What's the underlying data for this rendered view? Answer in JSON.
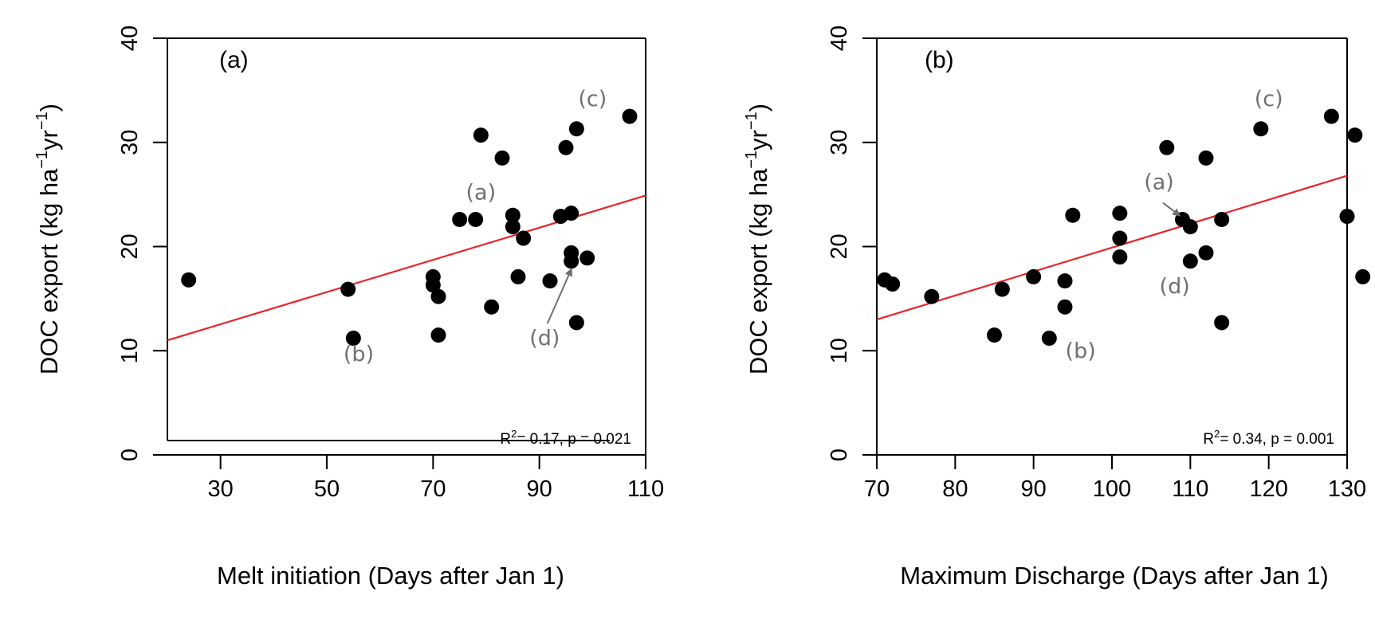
{
  "chart_data": [
    {
      "type": "scatter",
      "panel_label": "(a)",
      "xlabel": "Melt initiation (Days after Jan 1)",
      "ylabel": "DOC export (kg ha",
      "ylabel_sup1": "−1",
      "ylabel_mid": "yr",
      "ylabel_sup2": "−1",
      "ylabel_end": ")",
      "xlim": [
        20,
        110
      ],
      "ylim": [
        0,
        40
      ],
      "xticks": [
        30,
        50,
        70,
        90,
        110
      ],
      "yticks": [
        0,
        10,
        20,
        30,
        40
      ],
      "points": [
        {
          "x": 24,
          "y": 16.8
        },
        {
          "x": 54,
          "y": 15.9
        },
        {
          "x": 55,
          "y": 11.2
        },
        {
          "x": 70,
          "y": 17.1
        },
        {
          "x": 70,
          "y": 16.3
        },
        {
          "x": 71,
          "y": 15.2
        },
        {
          "x": 71,
          "y": 11.5
        },
        {
          "x": 75,
          "y": 22.6
        },
        {
          "x": 78,
          "y": 22.6
        },
        {
          "x": 79,
          "y": 30.7
        },
        {
          "x": 81,
          "y": 14.2
        },
        {
          "x": 83,
          "y": 28.5
        },
        {
          "x": 85,
          "y": 23.0
        },
        {
          "x": 85,
          "y": 21.9
        },
        {
          "x": 86,
          "y": 17.1
        },
        {
          "x": 87,
          "y": 20.8
        },
        {
          "x": 92,
          "y": 16.7
        },
        {
          "x": 94,
          "y": 22.9
        },
        {
          "x": 95,
          "y": 29.5
        },
        {
          "x": 96,
          "y": 23.2
        },
        {
          "x": 96,
          "y": 19.4
        },
        {
          "x": 96,
          "y": 18.6
        },
        {
          "x": 97,
          "y": 31.3
        },
        {
          "x": 97,
          "y": 12.7
        },
        {
          "x": 99,
          "y": 18.9
        },
        {
          "x": 107,
          "y": 32.5
        }
      ],
      "fit": {
        "x1": 20,
        "y1": 11.0,
        "x2": 110,
        "y2": 24.9,
        "color": "#e8242a"
      },
      "annotations": [
        {
          "text": "(a)",
          "x": 79,
          "y": 24.5
        },
        {
          "text": "(b)",
          "x": 56,
          "y": 9.0
        },
        {
          "text": "(c)",
          "x": 100,
          "y": 33.5
        },
        {
          "text": "(d)",
          "x": 91,
          "y": 10.5
        }
      ],
      "arrow": {
        "from_x": 91.5,
        "from_y": 12.6,
        "to_x": 96,
        "to_y": 17.8
      },
      "annotation_color": "#707070",
      "stat_r2": "R",
      "stat_sup": "2",
      "stat_rest": "= 0.17, p = 0.021"
    },
    {
      "type": "scatter",
      "panel_label": "(b)",
      "xlabel": "Maximum Discharge (Days after Jan 1)",
      "ylabel": "DOC export (kg ha",
      "ylabel_sup1": "−1",
      "ylabel_mid": "yr",
      "ylabel_sup2": "−1",
      "ylabel_end": ")",
      "xlim": [
        70,
        130
      ],
      "ylim": [
        0,
        40
      ],
      "xticks": [
        70,
        80,
        90,
        100,
        110,
        120,
        130
      ],
      "yticks": [
        0,
        10,
        20,
        30,
        40
      ],
      "points": [
        {
          "x": 71,
          "y": 16.8
        },
        {
          "x": 72,
          "y": 16.4
        },
        {
          "x": 77,
          "y": 15.2
        },
        {
          "x": 85,
          "y": 11.5
        },
        {
          "x": 86,
          "y": 15.9
        },
        {
          "x": 90,
          "y": 17.1
        },
        {
          "x": 92,
          "y": 11.2
        },
        {
          "x": 94,
          "y": 16.7
        },
        {
          "x": 94,
          "y": 14.2
        },
        {
          "x": 95,
          "y": 23.0
        },
        {
          "x": 101,
          "y": 23.2
        },
        {
          "x": 101,
          "y": 20.8
        },
        {
          "x": 101,
          "y": 19.0
        },
        {
          "x": 107,
          "y": 29.5
        },
        {
          "x": 109,
          "y": 22.6
        },
        {
          "x": 110,
          "y": 21.9
        },
        {
          "x": 110,
          "y": 18.6
        },
        {
          "x": 112,
          "y": 28.5
        },
        {
          "x": 112,
          "y": 19.4
        },
        {
          "x": 114,
          "y": 22.6
        },
        {
          "x": 114,
          "y": 12.7
        },
        {
          "x": 119,
          "y": 31.3
        },
        {
          "x": 128,
          "y": 32.5
        },
        {
          "x": 130,
          "y": 22.9
        },
        {
          "x": 131,
          "y": 30.7
        },
        {
          "x": 132,
          "y": 17.1
        }
      ],
      "fit": {
        "x1": 70,
        "y1": 13.0,
        "x2": 130,
        "y2": 26.8,
        "color": "#e8242a"
      },
      "annotations": [
        {
          "text": "(a)",
          "x": 106,
          "y": 25.5
        },
        {
          "text": "(b)",
          "x": 96,
          "y": 9.3
        },
        {
          "text": "(c)",
          "x": 120,
          "y": 33.5
        },
        {
          "text": "(d)",
          "x": 108,
          "y": 15.5
        }
      ],
      "arrow": {
        "from_x": 106.5,
        "from_y": 24.2,
        "to_x": 108.6,
        "to_y": 23.0
      },
      "annotation_color": "#707070",
      "stat_r2": "R",
      "stat_sup": "2",
      "stat_rest": "= 0.34, p = 0.001"
    }
  ]
}
